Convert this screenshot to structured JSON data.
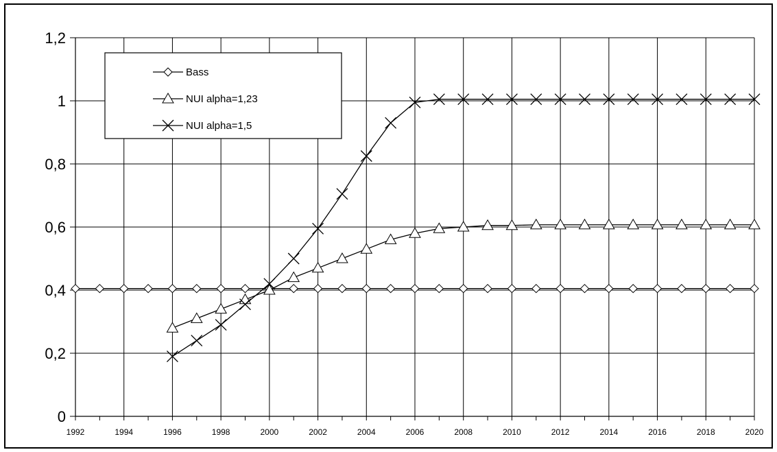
{
  "chart_data": {
    "type": "line",
    "title": "",
    "xlabel": "",
    "ylabel": "",
    "x": [
      1992,
      1993,
      1994,
      1995,
      1996,
      1997,
      1998,
      1999,
      2000,
      2001,
      2002,
      2003,
      2004,
      2005,
      2006,
      2007,
      2008,
      2009,
      2010,
      2011,
      2012,
      2013,
      2014,
      2015,
      2016,
      2017,
      2018,
      2019,
      2020
    ],
    "x_tick_labels": [
      "1992",
      "1994",
      "1996",
      "1998",
      "2000",
      "2002",
      "2004",
      "2006",
      "2008",
      "2010",
      "2012",
      "2014",
      "2016",
      "2018",
      "2020"
    ],
    "y_tick_labels": [
      "0",
      "0,2",
      "0,4",
      "0,6",
      "0,8",
      "1",
      "1,2"
    ],
    "ylim": [
      0,
      1.2
    ],
    "xlim": [
      1992,
      2020
    ],
    "grid": true,
    "legend_position": "top-left",
    "series": [
      {
        "name": "Bass",
        "marker": "diamond",
        "x": [
          1992,
          1993,
          1994,
          1995,
          1996,
          1997,
          1998,
          1999,
          2000,
          2001,
          2002,
          2003,
          2004,
          2005,
          2006,
          2007,
          2008,
          2009,
          2010,
          2011,
          2012,
          2013,
          2014,
          2015,
          2016,
          2017,
          2018,
          2019,
          2020
        ],
        "values": [
          0.405,
          0.405,
          0.405,
          0.405,
          0.405,
          0.405,
          0.405,
          0.405,
          0.405,
          0.405,
          0.405,
          0.405,
          0.405,
          0.405,
          0.405,
          0.405,
          0.405,
          0.405,
          0.405,
          0.405,
          0.405,
          0.405,
          0.405,
          0.405,
          0.405,
          0.405,
          0.405,
          0.405,
          0.405
        ]
      },
      {
        "name": "NUI alpha=1,23",
        "marker": "triangle",
        "x": [
          1996,
          1997,
          1998,
          1999,
          2000,
          2001,
          2002,
          2003,
          2004,
          2005,
          2006,
          2007,
          2008,
          2009,
          2010,
          2011,
          2012,
          2013,
          2014,
          2015,
          2016,
          2017,
          2018,
          2019,
          2020
        ],
        "values": [
          0.28,
          0.31,
          0.34,
          0.37,
          0.4,
          0.44,
          0.47,
          0.5,
          0.53,
          0.56,
          0.58,
          0.595,
          0.6,
          0.605,
          0.605,
          0.607,
          0.607,
          0.607,
          0.607,
          0.607,
          0.607,
          0.607,
          0.607,
          0.607,
          0.607
        ]
      },
      {
        "name": "NUI alpha=1,5",
        "marker": "x",
        "x": [
          1996,
          1997,
          1998,
          1999,
          2000,
          2001,
          2002,
          2003,
          2004,
          2005,
          2006,
          2007,
          2008,
          2009,
          2010,
          2011,
          2012,
          2013,
          2014,
          2015,
          2016,
          2017,
          2018,
          2019,
          2020
        ],
        "values": [
          0.19,
          0.24,
          0.29,
          0.355,
          0.42,
          0.5,
          0.595,
          0.705,
          0.825,
          0.93,
          0.995,
          1.005,
          1.005,
          1.005,
          1.005,
          1.005,
          1.005,
          1.005,
          1.005,
          1.005,
          1.005,
          1.005,
          1.005,
          1.005,
          1.005
        ]
      }
    ]
  }
}
